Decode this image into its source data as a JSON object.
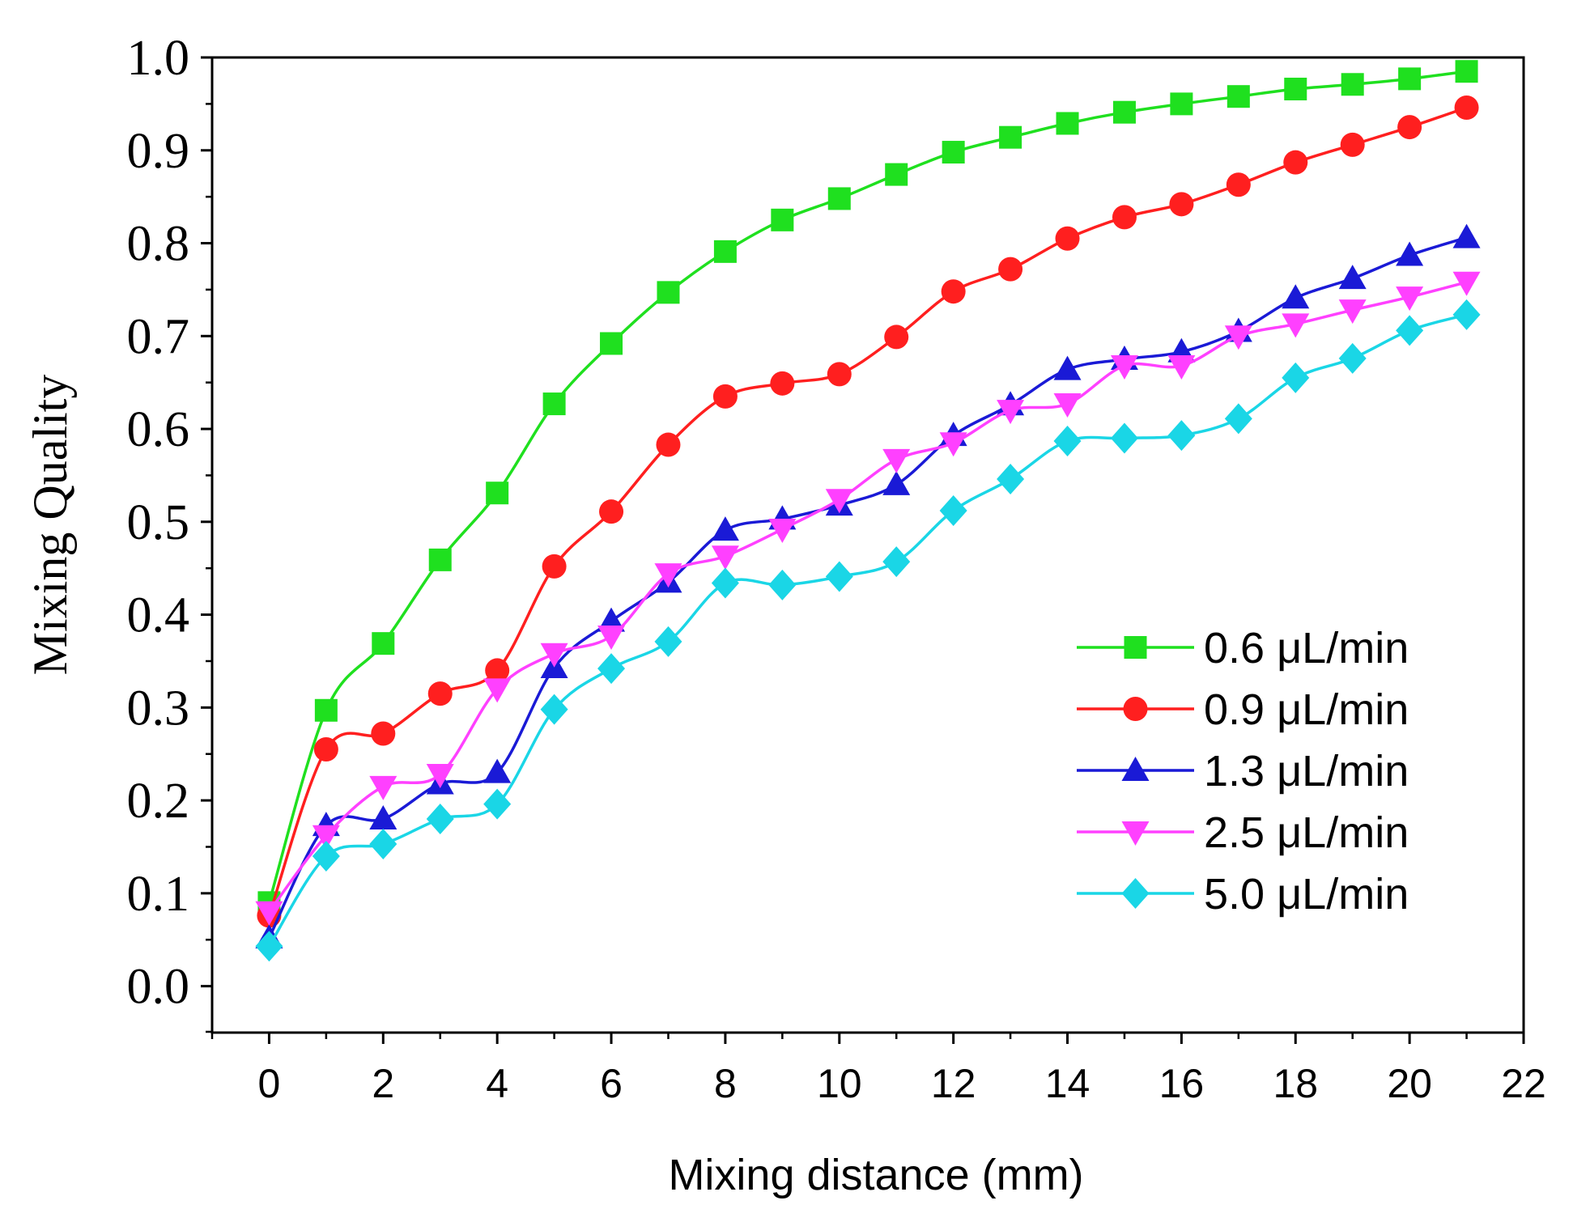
{
  "chart_data": {
    "type": "line",
    "title": "",
    "xlabel": "Mixing distance (mm)",
    "ylabel": "Mixing Quality",
    "xlim": [
      -1,
      22
    ],
    "ylim": [
      -0.05,
      1.0
    ],
    "xticks": [
      "0",
      "2",
      "4",
      "6",
      "8",
      "10",
      "12",
      "14",
      "16",
      "18",
      "20",
      "22"
    ],
    "yticks": [
      "0.0",
      "0.1",
      "0.2",
      "0.3",
      "0.4",
      "0.5",
      "0.6",
      "0.7",
      "0.8",
      "0.9",
      "1.0"
    ],
    "grid": false,
    "legend_position": "right-middle",
    "x": [
      0,
      1,
      2,
      3,
      4,
      5,
      6,
      7,
      8,
      9,
      10,
      11,
      12,
      13,
      14,
      15,
      16,
      17,
      18,
      19,
      20,
      21
    ],
    "series": [
      {
        "name": "0.6 μL/min",
        "color": "#1fe01f",
        "marker": "square",
        "values": [
          0.09,
          0.297,
          0.369,
          0.459,
          0.531,
          0.627,
          0.692,
          0.747,
          0.791,
          0.825,
          0.848,
          0.874,
          0.898,
          0.914,
          0.929,
          0.941,
          0.95,
          0.958,
          0.966,
          0.971,
          0.977,
          0.985
        ]
      },
      {
        "name": "0.9 μL/min",
        "color": "#ff1f1f",
        "marker": "circle",
        "values": [
          0.076,
          0.255,
          0.272,
          0.315,
          0.34,
          0.452,
          0.511,
          0.583,
          0.635,
          0.649,
          0.659,
          0.699,
          0.748,
          0.772,
          0.805,
          0.828,
          0.842,
          0.863,
          0.887,
          0.906,
          0.925,
          0.946
        ]
      },
      {
        "name": "1.3 μL/min",
        "color": "#1a1ad6",
        "marker": "triangle-up",
        "values": [
          0.052,
          0.173,
          0.18,
          0.218,
          0.23,
          0.343,
          0.393,
          0.435,
          0.491,
          0.503,
          0.518,
          0.54,
          0.593,
          0.626,
          0.664,
          0.675,
          0.683,
          0.705,
          0.741,
          0.762,
          0.787,
          0.806
        ]
      },
      {
        "name": "2.5 μL/min",
        "color": "#ff40ff",
        "marker": "triangle-down",
        "values": [
          0.08,
          0.162,
          0.215,
          0.228,
          0.32,
          0.358,
          0.377,
          0.444,
          0.463,
          0.492,
          0.524,
          0.567,
          0.585,
          0.62,
          0.627,
          0.668,
          0.668,
          0.7,
          0.713,
          0.728,
          0.742,
          0.758
        ]
      },
      {
        "name": "5.0 μL/min",
        "color": "#1ad6e6",
        "marker": "diamond",
        "values": [
          0.043,
          0.14,
          0.153,
          0.18,
          0.196,
          0.298,
          0.342,
          0.371,
          0.434,
          0.432,
          0.441,
          0.457,
          0.512,
          0.546,
          0.587,
          0.59,
          0.593,
          0.611,
          0.655,
          0.676,
          0.706,
          0.723
        ]
      }
    ]
  }
}
